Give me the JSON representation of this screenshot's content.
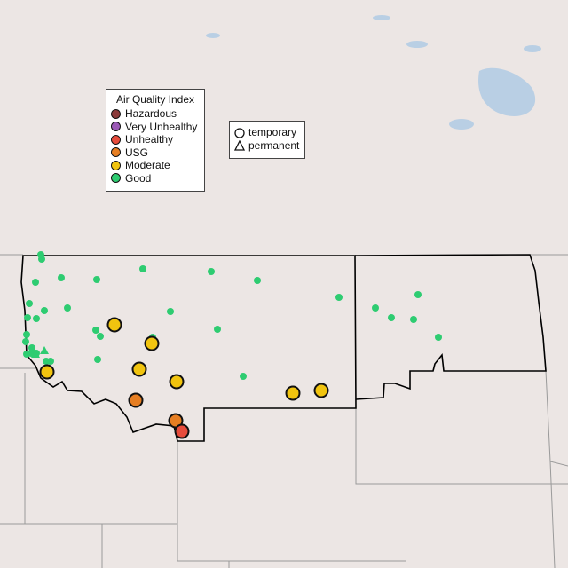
{
  "legend_aqi": {
    "title": "Air Quality Index",
    "items": [
      {
        "label": "Hazardous",
        "color": "#8b3a3a"
      },
      {
        "label": "Very Unhealthy",
        "color": "#9b59b6"
      },
      {
        "label": "Unhealthy",
        "color": "#e74c3c"
      },
      {
        "label": "USG",
        "color": "#e67e22"
      },
      {
        "label": "Moderate",
        "color": "#f1c40f"
      },
      {
        "label": "Good",
        "color": "#2ecc71"
      }
    ]
  },
  "legend_type": {
    "items": [
      {
        "label": "temporary",
        "shape": "circle"
      },
      {
        "label": "permanent",
        "shape": "triangle"
      }
    ]
  },
  "colors": {
    "background": "#ece6e4",
    "water": "#b9cfe4",
    "border_state": "#000000",
    "border_other": "#9a9a9a"
  }
}
